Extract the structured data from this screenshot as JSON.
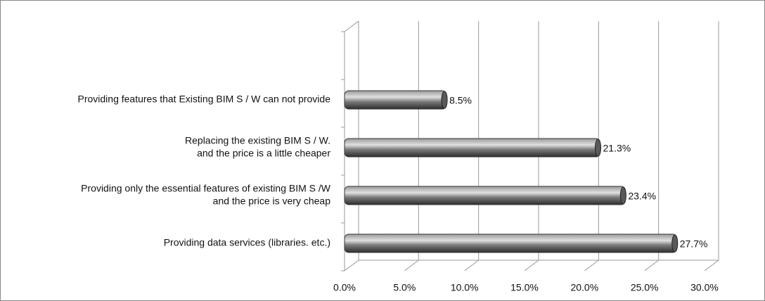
{
  "chart_data": {
    "type": "bar",
    "orientation": "horizontal",
    "categories": [
      [
        "Providing data services (libraries. etc.)"
      ],
      [
        "Providing only the essential features of existing BIM S /W",
        "and the price is very cheap"
      ],
      [
        "Replacing the existing BIM S / W.",
        "and the price is a little cheaper"
      ],
      [
        "Providing features that Existing BIM S / W can not provide"
      ],
      null
    ],
    "values": [
      27.7,
      23.4,
      21.3,
      8.5,
      null
    ],
    "value_labels": [
      "27.7%",
      "23.4%",
      "21.3%",
      "8.5%",
      null
    ],
    "color": "#6e6e6e",
    "xlim": [
      0,
      30
    ],
    "xticks": [
      {
        "value": 0,
        "label": "0.0%"
      },
      {
        "value": 5,
        "label": "5.0%"
      },
      {
        "value": 10,
        "label": "10.0%"
      },
      {
        "value": 15,
        "label": "15.0%"
      },
      {
        "value": 20,
        "label": "20.0%"
      },
      {
        "value": 25,
        "label": "25.0%"
      },
      {
        "value": 30,
        "label": "30.0%"
      }
    ],
    "grid": true
  }
}
